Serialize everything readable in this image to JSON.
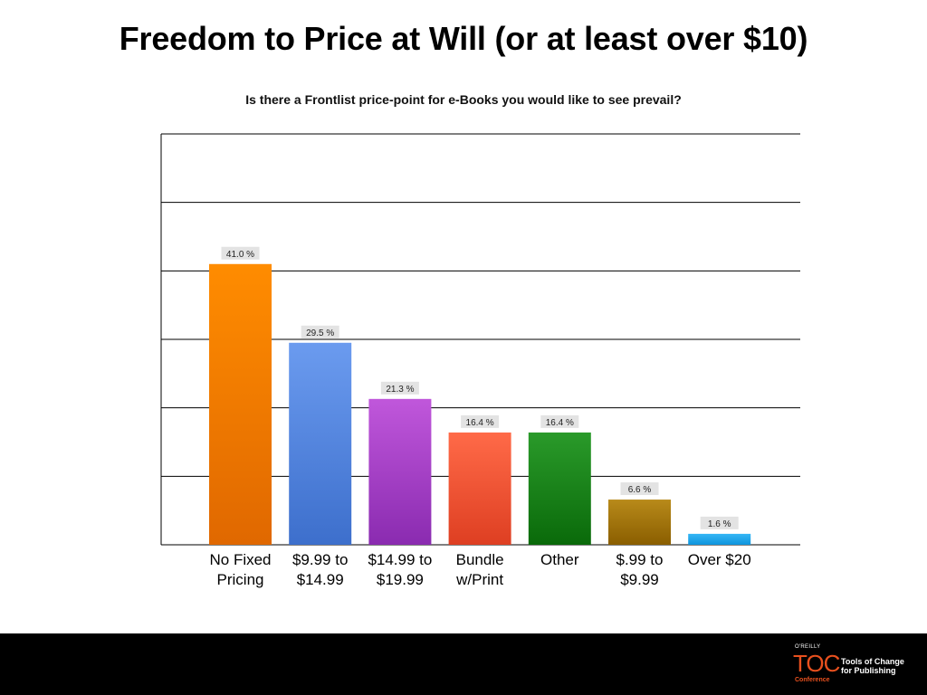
{
  "slide": {
    "title": "Freedom to Price at Will (or at least over $10)"
  },
  "chart_data": {
    "type": "bar",
    "title": "Is there a Frontlist price-point for e-Books you would like to see prevail?",
    "categories": [
      "No Fixed\nPricing",
      "$9.99 to\n$14.99",
      "$14.99 to\n$19.99",
      "Bundle\nw/Print",
      "Other",
      "$.99 to\n$9.99",
      "Over $20"
    ],
    "values": [
      41.0,
      29.5,
      21.3,
      16.4,
      16.4,
      6.6,
      1.6
    ],
    "data_labels": [
      "41.0 %",
      "29.5 %",
      "21.3 %",
      "16.4 %",
      "16.4 %",
      "6.6 %",
      "1.6 %"
    ],
    "colors": [
      [
        "#ff8c00",
        "#e06800"
      ],
      [
        "#6b9bef",
        "#3d6fcc"
      ],
      [
        "#c057db",
        "#8a2bb0"
      ],
      [
        "#ff6a48",
        "#de3f22"
      ],
      [
        "#2a9a2a",
        "#0a6a0a"
      ],
      [
        "#b88a1a",
        "#8a5e00"
      ],
      [
        "#35b6f5",
        "#0e95dd"
      ]
    ],
    "ylim": [
      0,
      60
    ],
    "grid": true,
    "xlabel": "",
    "ylabel": ""
  },
  "footer": {
    "publisher": "O'REILLY",
    "brand": "TOC",
    "conference": "Conference",
    "tagline": "Tools of Change\nfor Publishing"
  }
}
